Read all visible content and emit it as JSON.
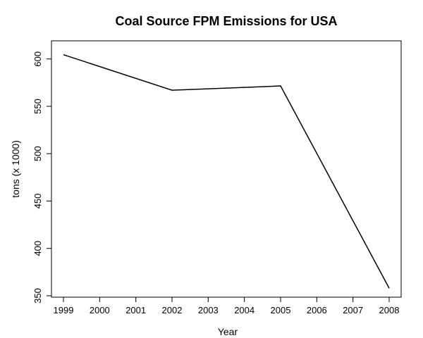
{
  "chart_data": {
    "type": "line",
    "title": "Coal Source FPM Emissions for USA",
    "xlabel": "Year",
    "ylabel": "tons (x 1000)",
    "x_ticks": [
      "1999",
      "2000",
      "2001",
      "2002",
      "2003",
      "2004",
      "2005",
      "2006",
      "2007",
      "2008"
    ],
    "y_ticks": [
      "350",
      "400",
      "450",
      "500",
      "550",
      "600"
    ],
    "xlim": [
      1999,
      2008
    ],
    "ylim": [
      350,
      605
    ],
    "grid": false,
    "legend": "none",
    "line_color": "#000000",
    "series": [
      {
        "x": [
          1999,
          2002,
          2005,
          2008
        ],
        "values": [
          604.5,
          567.0,
          571.5,
          358.0
        ]
      }
    ]
  }
}
